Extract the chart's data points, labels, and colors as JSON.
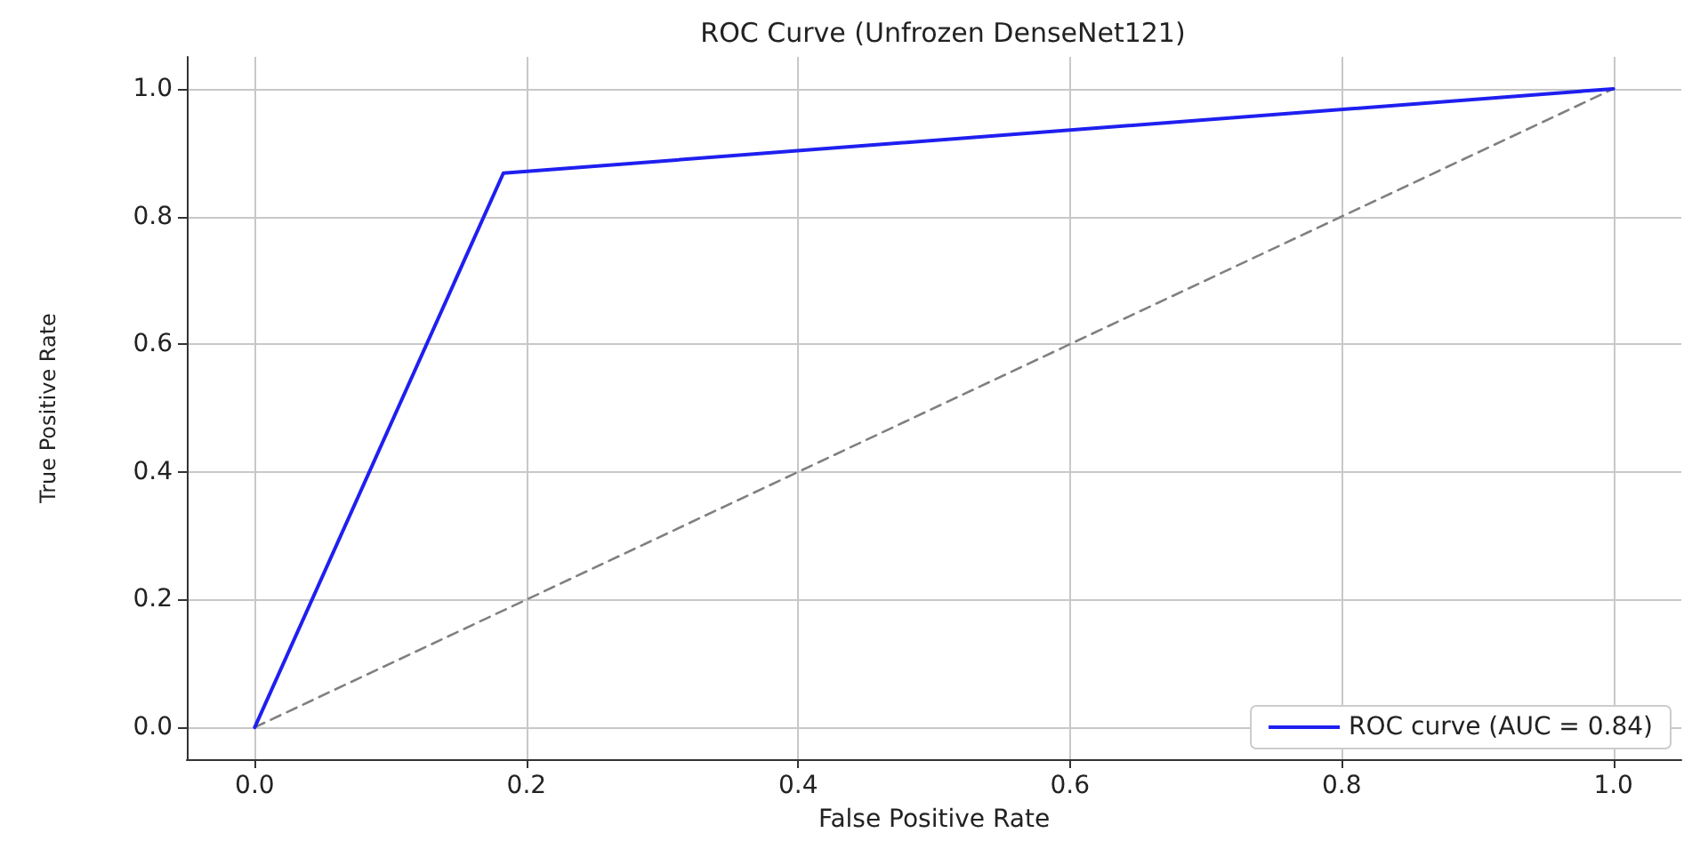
{
  "chart_data": {
    "type": "line",
    "title": "ROC Curve (Unfrozen DenseNet121)",
    "xlabel": "False Positive Rate",
    "ylabel": "True Positive Rate",
    "series": [
      {
        "name": "ROC curve (AUC = 0.84)",
        "color": "#1f1ff0",
        "x": [
          0,
          0.183,
          1
        ],
        "values": [
          0,
          0.868,
          1
        ]
      },
      {
        "color": "#808080",
        "x": [
          0,
          1
        ],
        "values": [
          0,
          1
        ],
        "line_style": "dashed"
      }
    ],
    "xlim": [
      -0.05,
      1.05
    ],
    "ylim": [
      -0.05,
      1.05
    ],
    "xticks": [
      {
        "value": 0,
        "label": "0.0"
      },
      {
        "value": 0.2,
        "label": "0.2"
      },
      {
        "value": 0.4,
        "label": "0.4"
      },
      {
        "value": 0.6,
        "label": "0.6"
      },
      {
        "value": 0.8,
        "label": "0.8"
      },
      {
        "value": 1,
        "label": "1.0"
      }
    ],
    "yticks": [
      {
        "value": 0,
        "label": "0.0"
      },
      {
        "value": 0.2,
        "label": "0.2"
      },
      {
        "value": 0.4,
        "label": "0.4"
      },
      {
        "value": 0.6,
        "label": "0.6"
      },
      {
        "value": 0.8,
        "label": "0.8"
      },
      {
        "value": 1,
        "label": "1.0"
      }
    ],
    "grid": true,
    "legend": "bottom right",
    "marker": "none"
  }
}
